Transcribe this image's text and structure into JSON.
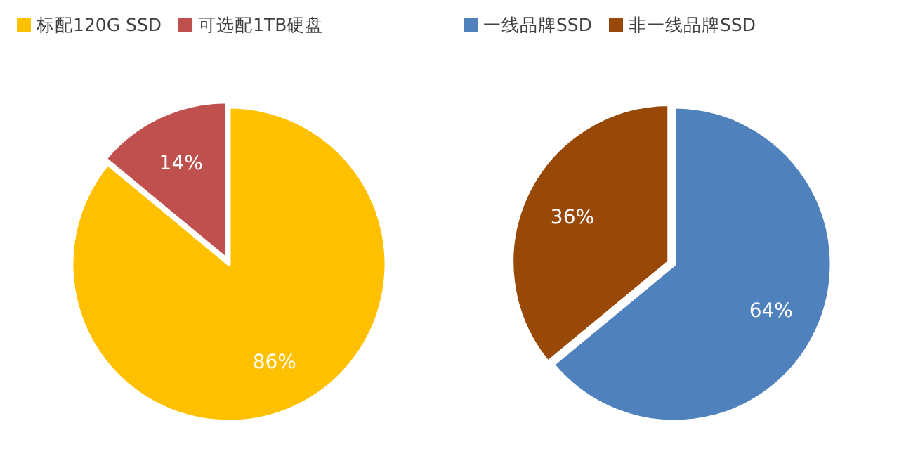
{
  "chart_data": [
    {
      "type": "pie",
      "categories": [
        "标配120G SSD",
        "可选配1TB硬盘"
      ],
      "values": [
        86,
        14
      ],
      "value_labels": [
        "86%",
        "14%"
      ],
      "colors": [
        "#ffc000",
        "#c0504d"
      ],
      "legend": "top left"
    },
    {
      "type": "pie",
      "categories": [
        "一线品牌SSD",
        "非一线品牌SSD"
      ],
      "values": [
        64,
        36
      ],
      "value_labels": [
        "64%",
        "36%"
      ],
      "colors": [
        "#4f81bd",
        "#984807"
      ],
      "legend": "top left"
    }
  ]
}
